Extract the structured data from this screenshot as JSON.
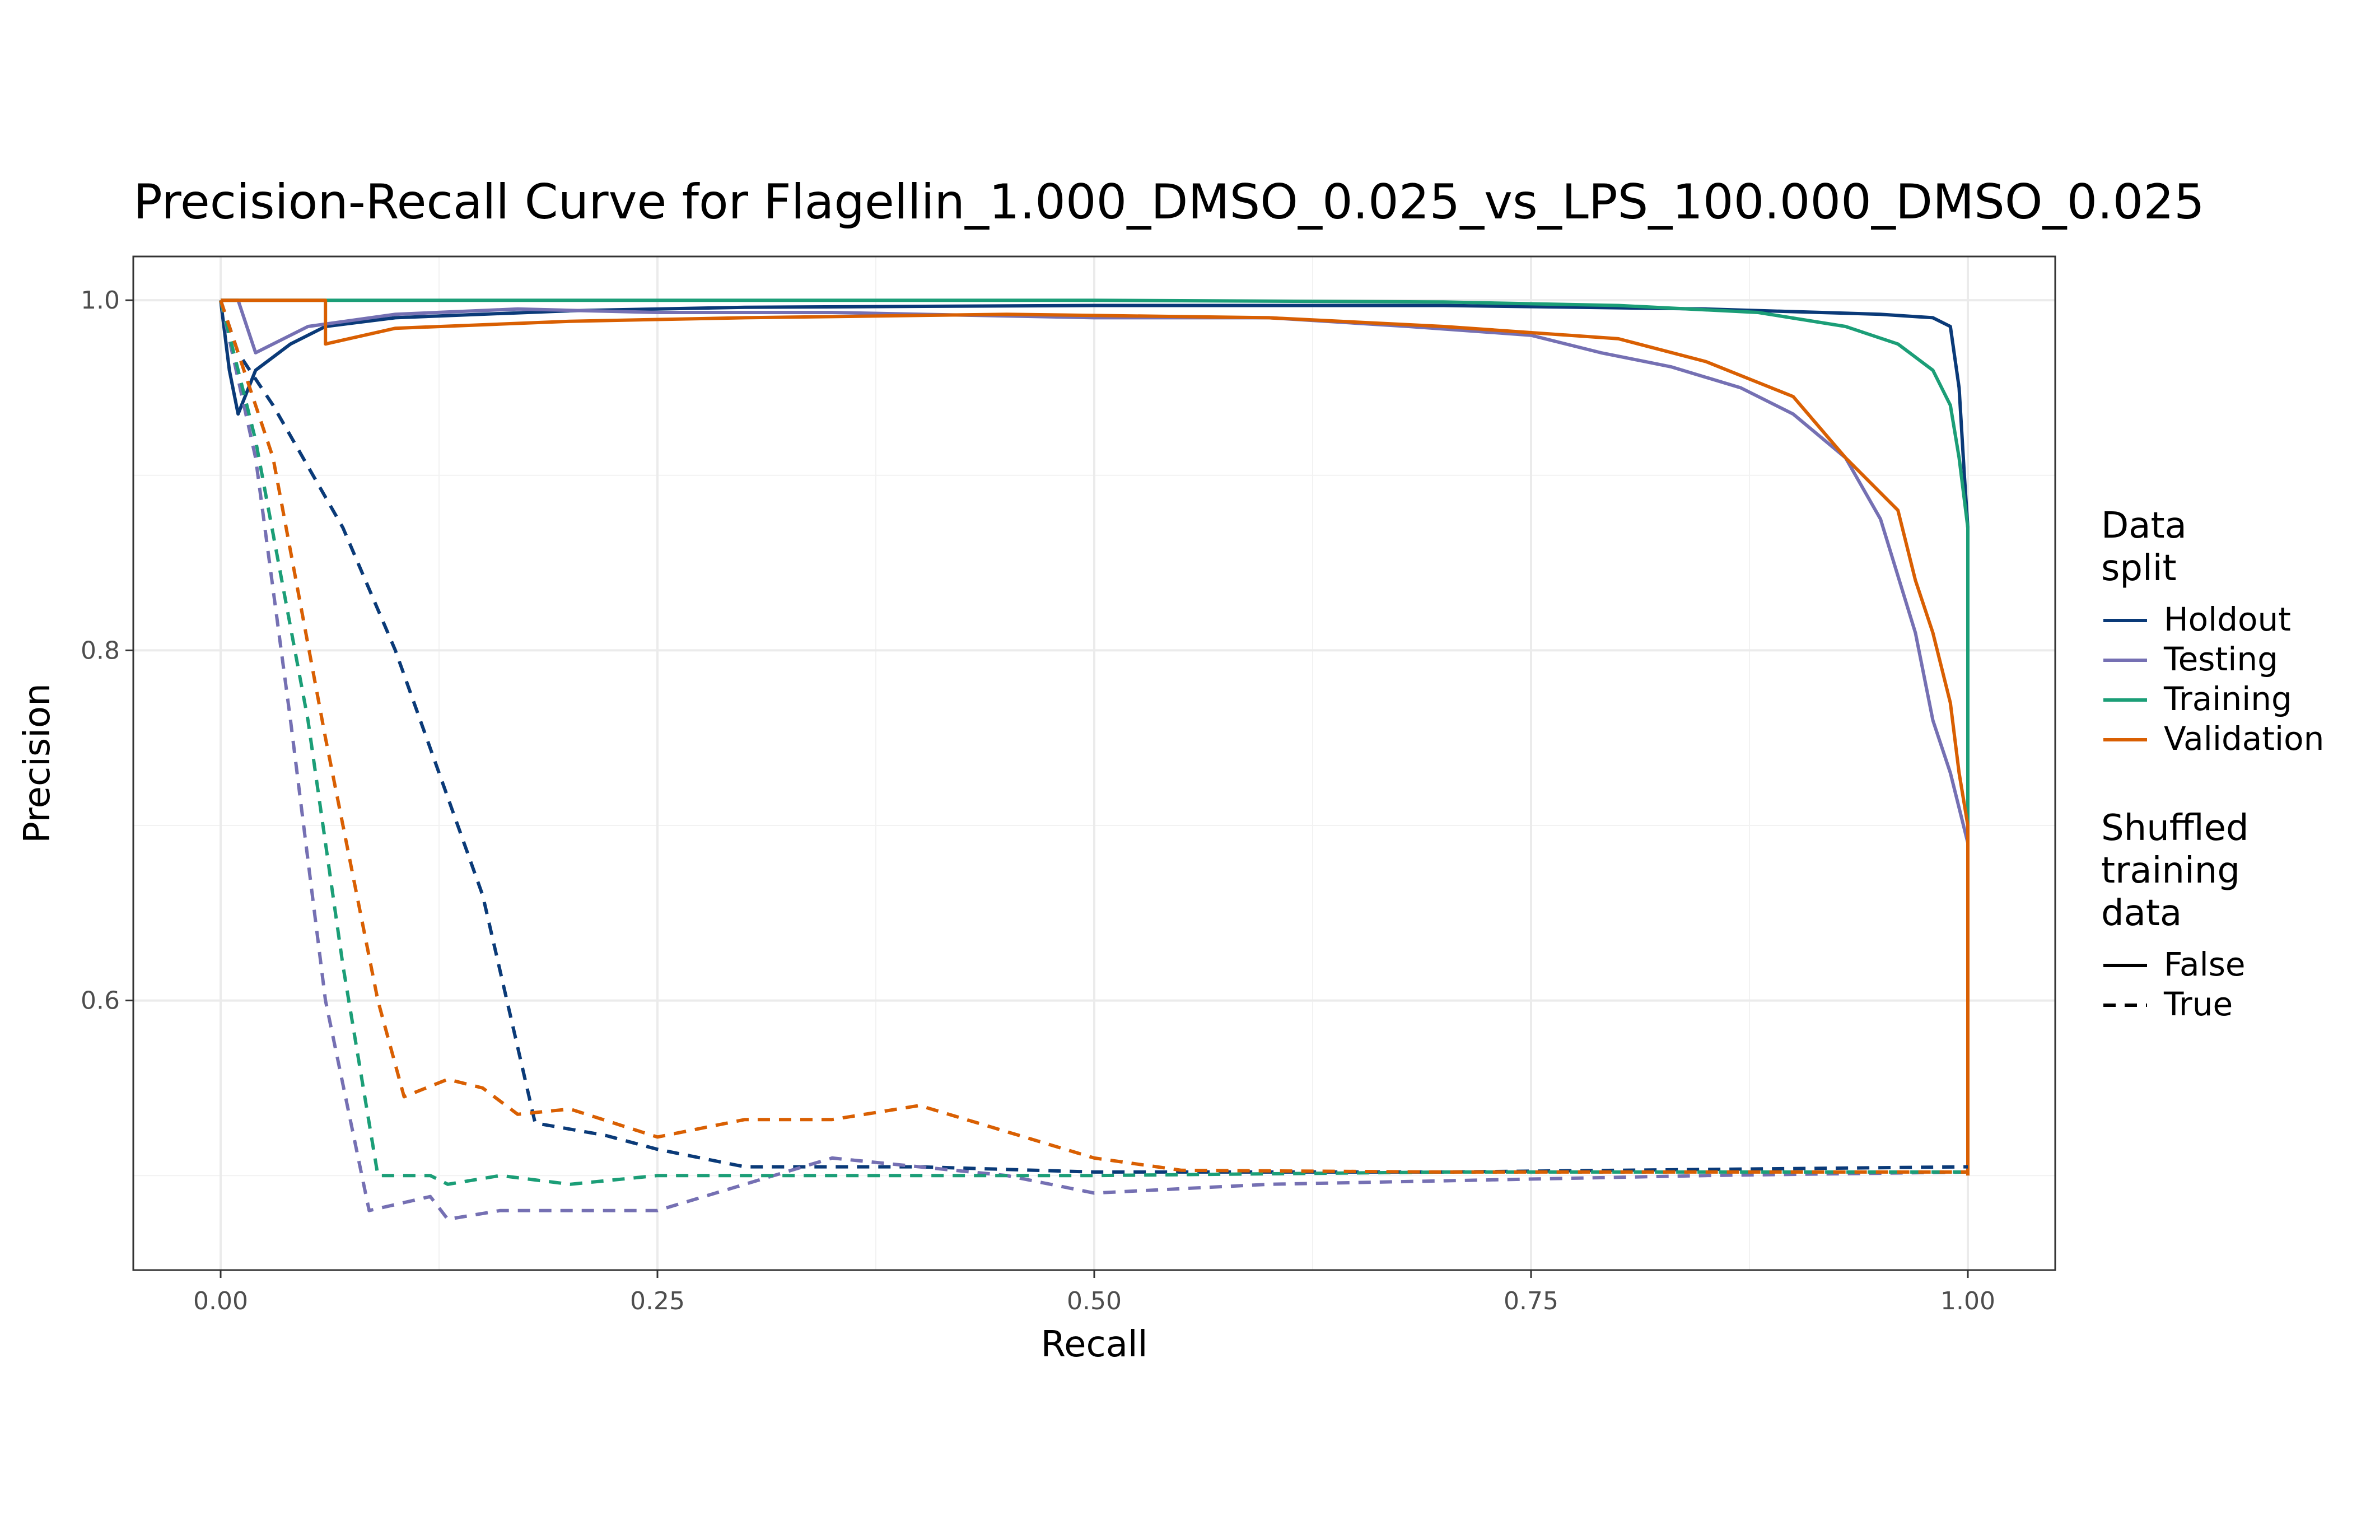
{
  "chart_data": {
    "type": "line",
    "title": "Precision-Recall Curve for Flagellin_1.000_DMSO_0.025_vs_LPS_100.000_DMSO_0.025",
    "xlabel": "Recall",
    "ylabel": "Precision",
    "xlim": [
      -0.05,
      1.05
    ],
    "ylim": [
      0.446,
      1.025
    ],
    "x_ticks": [
      0.0,
      0.25,
      0.5,
      0.75,
      1.0
    ],
    "x_tick_labels": [
      "0.00",
      "0.25",
      "0.50",
      "0.75",
      "1.00"
    ],
    "y_ticks": [
      0.6,
      0.8,
      1.0
    ],
    "y_tick_labels": [
      "0.6",
      "0.8",
      "1.0"
    ],
    "grid": true,
    "legend_position": "right",
    "legend": {
      "color_title": "Data\nsplit",
      "color_entries": [
        "Holdout",
        "Testing",
        "Training",
        "Validation"
      ],
      "linetype_title": "Shuffled\ntraining\ndata",
      "linetype_entries": [
        "False",
        "True"
      ]
    },
    "colors": {
      "Holdout": "#0a3a78",
      "Testing": "#7570b3",
      "Training": "#1b9e77",
      "Validation": "#d95f02"
    },
    "series": [
      {
        "name": "Holdout",
        "shuffled": "False",
        "points": [
          [
            0.0,
            1.0
          ],
          [
            0.005,
            0.96
          ],
          [
            0.01,
            0.935
          ],
          [
            0.02,
            0.96
          ],
          [
            0.04,
            0.975
          ],
          [
            0.06,
            0.985
          ],
          [
            0.1,
            0.99
          ],
          [
            0.2,
            0.994
          ],
          [
            0.3,
            0.996
          ],
          [
            0.5,
            0.997
          ],
          [
            0.7,
            0.997
          ],
          [
            0.85,
            0.995
          ],
          [
            0.95,
            0.992
          ],
          [
            0.98,
            0.99
          ],
          [
            0.99,
            0.985
          ],
          [
            0.995,
            0.95
          ],
          [
            0.998,
            0.9
          ],
          [
            1.0,
            0.87
          ],
          [
            1.0,
            0.7
          ]
        ]
      },
      {
        "name": "Testing",
        "shuffled": "False",
        "points": [
          [
            0.0,
            1.0
          ],
          [
            0.01,
            1.0
          ],
          [
            0.02,
            0.97
          ],
          [
            0.05,
            0.985
          ],
          [
            0.1,
            0.992
          ],
          [
            0.17,
            0.995
          ],
          [
            0.25,
            0.993
          ],
          [
            0.35,
            0.993
          ],
          [
            0.5,
            0.99
          ],
          [
            0.6,
            0.99
          ],
          [
            0.68,
            0.985
          ],
          [
            0.75,
            0.98
          ],
          [
            0.79,
            0.97
          ],
          [
            0.83,
            0.962
          ],
          [
            0.87,
            0.95
          ],
          [
            0.9,
            0.935
          ],
          [
            0.93,
            0.91
          ],
          [
            0.95,
            0.875
          ],
          [
            0.97,
            0.81
          ],
          [
            0.98,
            0.76
          ],
          [
            0.99,
            0.73
          ],
          [
            0.995,
            0.71
          ],
          [
            1.0,
            0.69
          ]
        ]
      },
      {
        "name": "Training",
        "shuffled": "False",
        "points": [
          [
            0.0,
            1.0
          ],
          [
            0.2,
            1.0
          ],
          [
            0.5,
            1.0
          ],
          [
            0.7,
            0.999
          ],
          [
            0.8,
            0.997
          ],
          [
            0.88,
            0.993
          ],
          [
            0.93,
            0.985
          ],
          [
            0.96,
            0.975
          ],
          [
            0.98,
            0.96
          ],
          [
            0.99,
            0.94
          ],
          [
            0.995,
            0.91
          ],
          [
            1.0,
            0.87
          ],
          [
            1.0,
            0.68
          ]
        ]
      },
      {
        "name": "Validation",
        "shuffled": "False",
        "points": [
          [
            0.0,
            1.0
          ],
          [
            0.06,
            1.0
          ],
          [
            0.06,
            0.975
          ],
          [
            0.1,
            0.984
          ],
          [
            0.2,
            0.988
          ],
          [
            0.3,
            0.99
          ],
          [
            0.45,
            0.992
          ],
          [
            0.6,
            0.99
          ],
          [
            0.7,
            0.985
          ],
          [
            0.8,
            0.978
          ],
          [
            0.85,
            0.965
          ],
          [
            0.9,
            0.945
          ],
          [
            0.93,
            0.91
          ],
          [
            0.96,
            0.88
          ],
          [
            0.97,
            0.84
          ],
          [
            0.98,
            0.81
          ],
          [
            0.99,
            0.77
          ],
          [
            0.995,
            0.73
          ],
          [
            1.0,
            0.7
          ],
          [
            1.0,
            0.5
          ]
        ]
      },
      {
        "name": "Holdout",
        "shuffled": "True",
        "points": [
          [
            0.0,
            1.0
          ],
          [
            0.01,
            0.97
          ],
          [
            0.03,
            0.94
          ],
          [
            0.07,
            0.87
          ],
          [
            0.1,
            0.8
          ],
          [
            0.15,
            0.66
          ],
          [
            0.18,
            0.53
          ],
          [
            0.22,
            0.523
          ],
          [
            0.25,
            0.515
          ],
          [
            0.3,
            0.505
          ],
          [
            0.4,
            0.505
          ],
          [
            0.5,
            0.502
          ],
          [
            0.7,
            0.502
          ],
          [
            1.0,
            0.505
          ]
        ]
      },
      {
        "name": "Testing",
        "shuffled": "True",
        "points": [
          [
            0.0,
            1.0
          ],
          [
            0.02,
            0.91
          ],
          [
            0.04,
            0.76
          ],
          [
            0.06,
            0.6
          ],
          [
            0.085,
            0.48
          ],
          [
            0.12,
            0.488
          ],
          [
            0.13,
            0.475
          ],
          [
            0.16,
            0.48
          ],
          [
            0.2,
            0.48
          ],
          [
            0.25,
            0.48
          ],
          [
            0.3,
            0.495
          ],
          [
            0.35,
            0.51
          ],
          [
            0.4,
            0.505
          ],
          [
            0.45,
            0.5
          ],
          [
            0.5,
            0.49
          ],
          [
            0.6,
            0.495
          ],
          [
            0.7,
            0.497
          ],
          [
            0.85,
            0.5
          ],
          [
            1.0,
            0.502
          ]
        ]
      },
      {
        "name": "Training",
        "shuffled": "True",
        "points": [
          [
            0.0,
            1.0
          ],
          [
            0.02,
            0.92
          ],
          [
            0.05,
            0.76
          ],
          [
            0.07,
            0.62
          ],
          [
            0.09,
            0.5
          ],
          [
            0.12,
            0.5
          ],
          [
            0.13,
            0.495
          ],
          [
            0.16,
            0.5
          ],
          [
            0.2,
            0.495
          ],
          [
            0.25,
            0.5
          ],
          [
            0.3,
            0.5
          ],
          [
            0.4,
            0.5
          ],
          [
            0.5,
            0.5
          ],
          [
            0.7,
            0.502
          ],
          [
            1.0,
            0.502
          ]
        ]
      },
      {
        "name": "Validation",
        "shuffled": "True",
        "points": [
          [
            0.0,
            1.0
          ],
          [
            0.03,
            0.91
          ],
          [
            0.06,
            0.75
          ],
          [
            0.09,
            0.6
          ],
          [
            0.105,
            0.545
          ],
          [
            0.13,
            0.555
          ],
          [
            0.15,
            0.55
          ],
          [
            0.17,
            0.535
          ],
          [
            0.2,
            0.538
          ],
          [
            0.25,
            0.522
          ],
          [
            0.3,
            0.532
          ],
          [
            0.35,
            0.532
          ],
          [
            0.4,
            0.54
          ],
          [
            0.45,
            0.525
          ],
          [
            0.5,
            0.51
          ],
          [
            0.55,
            0.503
          ],
          [
            0.7,
            0.502
          ],
          [
            1.0,
            0.502
          ]
        ]
      }
    ]
  }
}
